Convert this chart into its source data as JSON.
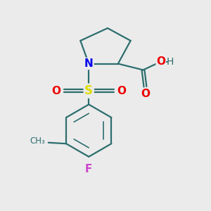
{
  "bg_color": "#ebebeb",
  "bond_color": "#2d6e6e",
  "N_color": "#0000ee",
  "S_color": "#dddd00",
  "O_color": "#ee0000",
  "F_color": "#cc44cc",
  "H_color": "#2d6e6e",
  "bond_lw": 1.6,
  "figsize": [
    3.0,
    3.0
  ],
  "xlim": [
    0,
    10
  ],
  "ylim": [
    0,
    10
  ]
}
